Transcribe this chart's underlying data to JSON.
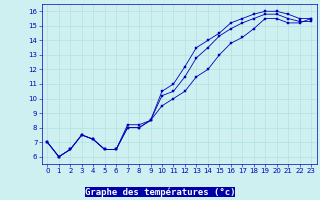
{
  "xlabel": "Graphe des températures (°c)",
  "bg_color": "#cff0f0",
  "grid_color": "#aadddd",
  "line_color": "#0000bb",
  "marker_color": "#0000bb",
  "xlabel_bg": "#0000aa",
  "xlabel_fg": "#ffffff",
  "xlim": [
    -0.5,
    23.5
  ],
  "ylim": [
    5.5,
    16.5
  ],
  "xticks": [
    0,
    1,
    2,
    3,
    4,
    5,
    6,
    7,
    8,
    9,
    10,
    11,
    12,
    13,
    14,
    15,
    16,
    17,
    18,
    19,
    20,
    21,
    22,
    23
  ],
  "yticks": [
    6,
    7,
    8,
    9,
    10,
    11,
    12,
    13,
    14,
    15,
    16
  ],
  "line1_y": [
    7.0,
    6.0,
    6.5,
    7.5,
    7.2,
    6.5,
    6.5,
    8.2,
    8.2,
    8.5,
    10.5,
    11.0,
    12.2,
    13.5,
    14.0,
    14.5,
    15.2,
    15.5,
    15.8,
    16.0,
    16.0,
    15.8,
    15.5,
    15.5
  ],
  "line2_y": [
    7.0,
    6.0,
    6.5,
    7.5,
    7.2,
    6.5,
    6.5,
    8.0,
    8.0,
    8.5,
    10.2,
    10.5,
    11.5,
    12.8,
    13.5,
    14.3,
    14.8,
    15.2,
    15.5,
    15.8,
    15.8,
    15.5,
    15.3,
    15.3
  ],
  "line3_y": [
    7.0,
    6.0,
    6.5,
    7.5,
    7.2,
    6.5,
    6.5,
    8.0,
    8.0,
    8.5,
    9.5,
    10.0,
    10.5,
    11.5,
    12.0,
    13.0,
    13.8,
    14.2,
    14.8,
    15.5,
    15.5,
    15.2,
    15.2,
    15.5
  ],
  "tick_fontsize": 5.0,
  "xlabel_fontsize": 6.5,
  "lw": 0.6,
  "ms": 1.5
}
